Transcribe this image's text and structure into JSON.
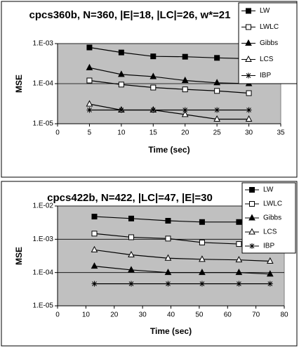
{
  "chart_data": [
    {
      "type": "line",
      "title": "cpcs360b, N=360, |E|=18, |LC|=26, w*=21",
      "x_label": "Time (sec)",
      "y_label": "MSE",
      "log_y": true,
      "grid": true,
      "legend": "top-right",
      "xlim": [
        0,
        35
      ],
      "xticks": [
        0,
        5,
        10,
        15,
        20,
        25,
        30,
        35
      ],
      "ylim": [
        1e-05,
        0.001
      ],
      "yticks": [
        {
          "value": 1e-05,
          "label": "1.E-05"
        },
        {
          "value": 0.0001,
          "label": "1.E-04"
        },
        {
          "value": 0.001,
          "label": "1.E-03"
        }
      ],
      "x": [
        5,
        10,
        15,
        20,
        25,
        30
      ],
      "series": [
        {
          "name": "LW",
          "color": "#000000",
          "marker": "square-filled",
          "values": [
            0.0008,
            0.0006,
            0.00048,
            0.00047,
            0.00044,
            0.00042
          ]
        },
        {
          "name": "LWLC",
          "color": "#000000",
          "marker": "square-open",
          "values": [
            0.00012,
            9.5e-05,
            8e-05,
            7.2e-05,
            6.6e-05,
            5.8e-05
          ]
        },
        {
          "name": "Gibbs",
          "color": "#000000",
          "marker": "triangle-filled",
          "values": [
            0.00025,
            0.00017,
            0.00015,
            0.00012,
            0.000105,
            0.0001
          ]
        },
        {
          "name": "LCS",
          "color": "#000000",
          "marker": "triangle-open",
          "values": [
            3.1e-05,
            2.2e-05,
            2.2e-05,
            1.7e-05,
            1.3e-05,
            1.3e-05
          ]
        },
        {
          "name": "IBP",
          "color": "#000000",
          "marker": "asterisk",
          "values": [
            2.2e-05,
            2.2e-05,
            2.2e-05,
            2.2e-05,
            2.2e-05,
            2.2e-05
          ]
        }
      ]
    },
    {
      "type": "line",
      "title": "cpcs422b, N=422, |LC|=47, |E|=30",
      "x_label": "Time (sec)",
      "y_label": "MSE",
      "log_y": true,
      "grid": true,
      "legend": "top-right",
      "xlim": [
        0,
        80
      ],
      "xticks": [
        0,
        10,
        20,
        30,
        40,
        50,
        60,
        70,
        80
      ],
      "ylim": [
        1e-05,
        0.01
      ],
      "yticks": [
        {
          "value": 1e-05,
          "label": "1.E-05"
        },
        {
          "value": 0.0001,
          "label": "1.E-04"
        },
        {
          "value": 0.001,
          "label": "1.E-03"
        },
        {
          "value": 0.01,
          "label": "1.E-02"
        }
      ],
      "x": [
        13,
        26,
        39,
        51,
        64,
        75
      ],
      "series": [
        {
          "name": "LW",
          "color": "#000000",
          "marker": "square-filled",
          "values": [
            0.0048,
            0.0042,
            0.0036,
            0.0033,
            0.0033,
            0.0033
          ]
        },
        {
          "name": "LWLC",
          "color": "#000000",
          "marker": "square-open",
          "values": [
            0.00148,
            0.00115,
            0.00105,
            0.0008,
            0.00072,
            0.00066
          ]
        },
        {
          "name": "Gibbs",
          "color": "#000000",
          "marker": "triangle-filled",
          "values": [
            0.000155,
            0.00012,
            0.0001,
            0.0001,
            0.0001,
            9e-05
          ]
        },
        {
          "name": "LCS",
          "color": "#000000",
          "marker": "triangle-open",
          "values": [
            0.00048,
            0.00034,
            0.00027,
            0.00025,
            0.00024,
            0.00022
          ]
        },
        {
          "name": "IBP",
          "color": "#000000",
          "marker": "asterisk",
          "values": [
            4.6e-05,
            4.6e-05,
            4.6e-05,
            4.6e-05,
            4.6e-05,
            4.6e-05
          ]
        }
      ]
    }
  ]
}
